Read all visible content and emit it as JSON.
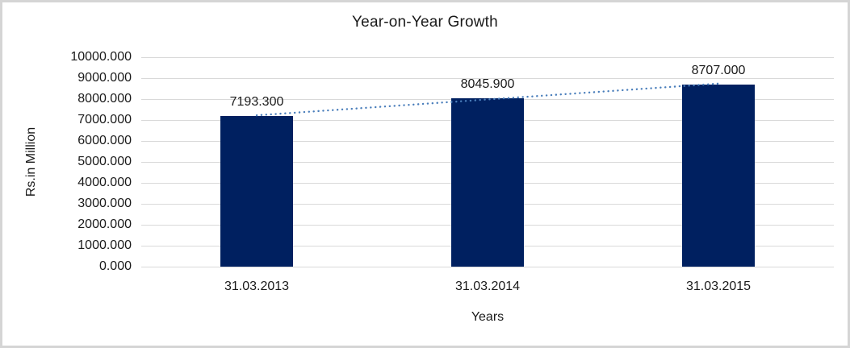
{
  "chart_data": {
    "type": "bar",
    "title": "Year-on-Year Growth",
    "categories": [
      "31.03.2013",
      "31.03.2014",
      "31.03.2015"
    ],
    "values": [
      7193.3,
      8045.9,
      8707.0
    ],
    "value_labels": [
      "7193.300",
      "8045.900",
      "8707.000"
    ],
    "xlabel": "Years",
    "ylabel": "Rs.in Million",
    "ylim": [
      0,
      10000
    ],
    "ytick_step": 1000,
    "ytick_labels": [
      "0.000",
      "1000.000",
      "2000.000",
      "3000.000",
      "4000.000",
      "5000.000",
      "6000.000",
      "7000.000",
      "8000.000",
      "9000.000",
      "10000.000"
    ],
    "grid": true,
    "legend": "none",
    "bar_color": "#002060",
    "gridline_color": "#d9d9d9",
    "frame_border_color": "#d5d5d5",
    "trendline": {
      "type": "linear",
      "style": "dotted",
      "color": "#4a7ebb"
    }
  }
}
